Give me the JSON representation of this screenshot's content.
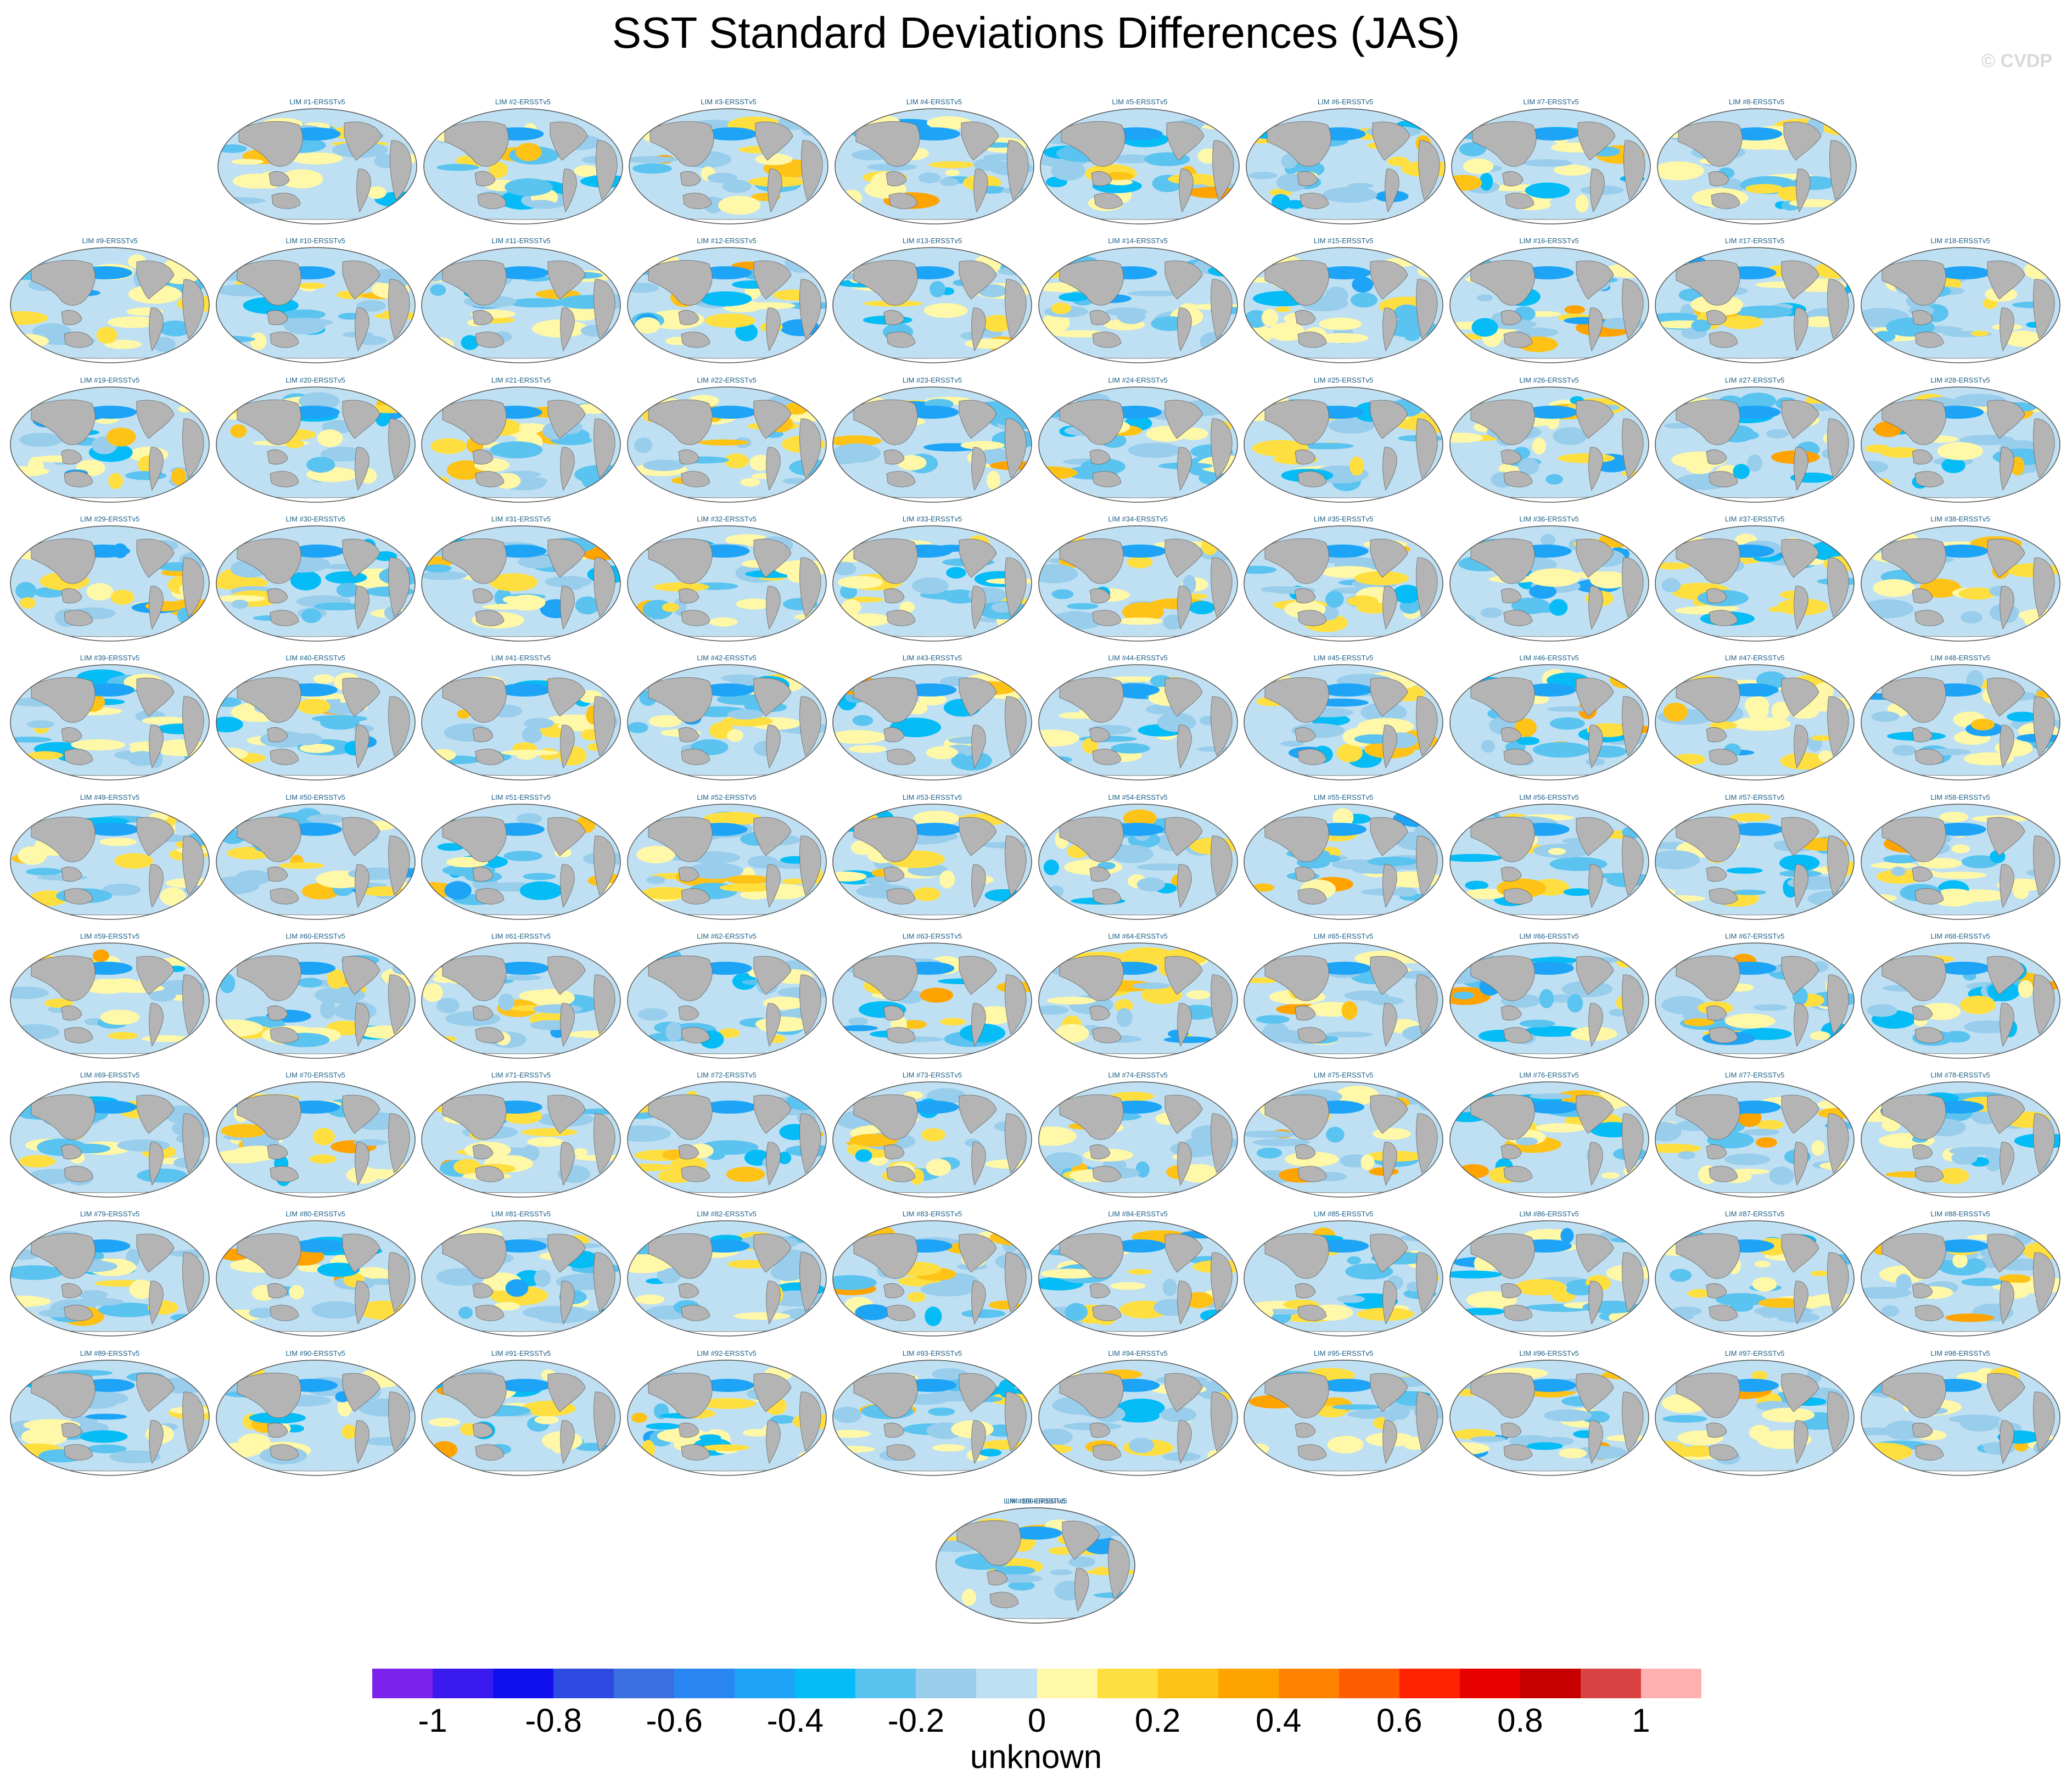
{
  "chart_data": {
    "type": "heatmap",
    "title": "SST Standard Deviations Differences (JAS)",
    "credit": "© CVDP",
    "panels": [
      "LIM #1-ERSSTv5",
      "LIM #2-ERSSTv5",
      "LIM #3-ERSSTv5",
      "LIM #4-ERSSTv5",
      "LIM #5-ERSSTv5",
      "LIM #6-ERSSTv5",
      "LIM #7-ERSSTv5",
      "LIM #8-ERSSTv5",
      "LIM #9-ERSSTv5",
      "LIM #10-ERSSTv5",
      "LIM #11-ERSSTv5",
      "LIM #12-ERSSTv5",
      "LIM #13-ERSSTv5",
      "LIM #14-ERSSTv5",
      "LIM #15-ERSSTv5",
      "LIM #16-ERSSTv5",
      "LIM #17-ERSSTv5",
      "LIM #18-ERSSTv5",
      "LIM #19-ERSSTv5",
      "LIM #20-ERSSTv5",
      "LIM #21-ERSSTv5",
      "LIM #22-ERSSTv5",
      "LIM #23-ERSSTv5",
      "LIM #24-ERSSTv5",
      "LIM #25-ERSSTv5",
      "LIM #26-ERSSTv5",
      "LIM #27-ERSSTv5",
      "LIM #28-ERSSTv5",
      "LIM #29-ERSSTv5",
      "LIM #30-ERSSTv5",
      "LIM #31-ERSSTv5",
      "LIM #32-ERSSTv5",
      "LIM #33-ERSSTv5",
      "LIM #34-ERSSTv5",
      "LIM #35-ERSSTv5",
      "LIM #36-ERSSTv5",
      "LIM #37-ERSSTv5",
      "LIM #38-ERSSTv5",
      "LIM #39-ERSSTv5",
      "LIM #40-ERSSTv5",
      "LIM #41-ERSSTv5",
      "LIM #42-ERSSTv5",
      "LIM #43-ERSSTv5",
      "LIM #44-ERSSTv5",
      "LIM #45-ERSSTv5",
      "LIM #46-ERSSTv5",
      "LIM #47-ERSSTv5",
      "LIM #48-ERSSTv5",
      "LIM #49-ERSSTv5",
      "LIM #50-ERSSTv5",
      "LIM #51-ERSSTv5",
      "LIM #52-ERSSTv5",
      "LIM #53-ERSSTv5",
      "LIM #54-ERSSTv5",
      "LIM #55-ERSSTv5",
      "LIM #56-ERSSTv5",
      "LIM #57-ERSSTv5",
      "LIM #58-ERSSTv5",
      "LIM #59-ERSSTv5",
      "LIM #60-ERSSTv5",
      "LIM #61-ERSSTv5",
      "LIM #62-ERSSTv5",
      "LIM #63-ERSSTv5",
      "LIM #64-ERSSTv5",
      "LIM #65-ERSSTv5",
      "LIM #66-ERSSTv5",
      "LIM #67-ERSSTv5",
      "LIM #68-ERSSTv5",
      "LIM #69-ERSSTv5",
      "LIM #70-ERSSTv5",
      "LIM #71-ERSSTv5",
      "LIM #72-ERSSTv5",
      "LIM #73-ERSSTv5",
      "LIM #74-ERSSTv5",
      "LIM #75-ERSSTv5",
      "LIM #76-ERSSTv5",
      "LIM #77-ERSSTv5",
      "LIM #78-ERSSTv5",
      "LIM #79-ERSSTv5",
      "LIM #80-ERSSTv5",
      "LIM #81-ERSSTv5",
      "LIM #82-ERSSTv5",
      "LIM #83-ERSSTv5",
      "LIM #84-ERSSTv5",
      "LIM #85-ERSSTv5",
      "LIM #86-ERSSTv5",
      "LIM #87-ERSSTv5",
      "LIM #88-ERSSTv5",
      "LIM #89-ERSSTv5",
      "LIM #90-ERSSTv5",
      "LIM #91-ERSSTv5",
      "LIM #92-ERSSTv5",
      "LIM #93-ERSSTv5",
      "LIM #94-ERSSTv5",
      "LIM #95-ERSSTv5",
      "LIM #96-ERSSTv5",
      "LIM #97-ERSSTv5",
      "LIM #98-ERSSTv5",
      "LIM #99-ERSSTv5",
      "LIM #100-ERSSTv5"
    ],
    "colorbar": {
      "label": "unknown",
      "levels": [
        -1.1,
        -1,
        -0.9,
        -0.8,
        -0.7,
        -0.6,
        -0.5,
        -0.4,
        -0.3,
        -0.2,
        -0.1,
        0,
        0.1,
        0.2,
        0.3,
        0.4,
        0.5,
        0.6,
        0.7,
        0.8,
        0.9,
        1,
        1.1
      ],
      "colors": [
        "#7b22ec",
        "#3b1af0",
        "#1010ee",
        "#2f4ae2",
        "#3b6fe0",
        "#2a86f2",
        "#1ea4f7",
        "#06bcf6",
        "#5ac3ef",
        "#99cdec",
        "#bfe0f2",
        "#fff8a8",
        "#ffdf3f",
        "#ffc216",
        "#ffa300",
        "#ff8300",
        "#ff5c00",
        "#ff2200",
        "#e80000",
        "#c60000",
        "#d94242",
        "#ffb0b0"
      ],
      "tick_values": [
        -1,
        -0.8,
        -0.6,
        -0.4,
        -0.2,
        0,
        0.2,
        0.4,
        0.6,
        0.8,
        1
      ],
      "tick_labels": [
        "-1",
        "-0.8",
        "-0.6",
        "-0.4",
        "-0.2",
        "0",
        "0.2",
        "0.4",
        "0.6",
        "0.8",
        "1"
      ]
    },
    "map_colors": {
      "ocean_base": "#bfe0f2",
      "land": "#b4b4b4",
      "missing": "#ffffff"
    }
  }
}
